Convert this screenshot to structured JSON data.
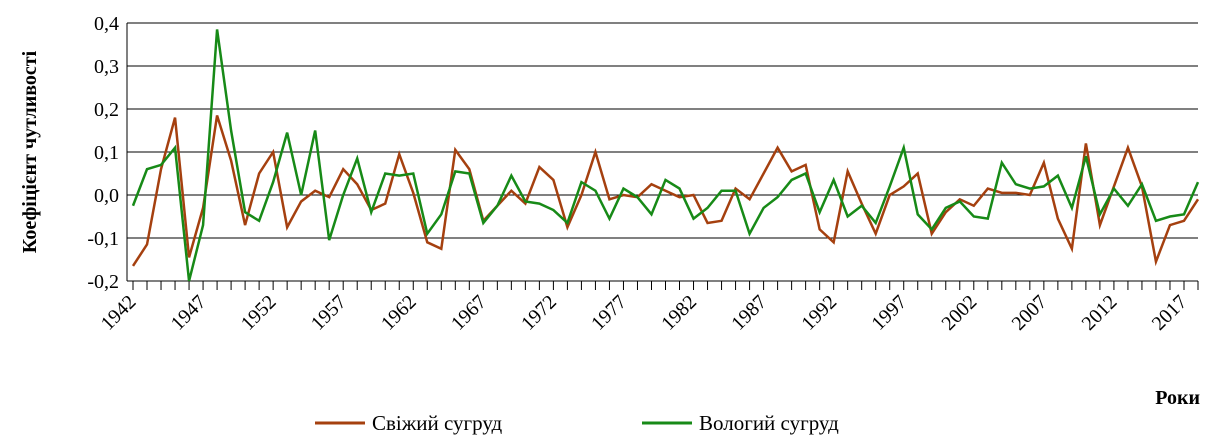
{
  "chart_data": {
    "type": "line",
    "y_label": "Коефіцієнт чутливості",
    "x_label": "Роки",
    "categories": [
      "1942",
      null,
      null,
      null,
      null,
      "1947",
      null,
      null,
      null,
      null,
      "1952",
      null,
      null,
      null,
      null,
      "1957",
      null,
      null,
      null,
      null,
      "1962",
      null,
      null,
      null,
      null,
      "1967",
      null,
      null,
      null,
      null,
      "1972",
      null,
      null,
      null,
      null,
      "1977",
      null,
      null,
      null,
      null,
      "1982",
      null,
      null,
      null,
      null,
      "1987",
      null,
      null,
      null,
      null,
      "1992",
      null,
      null,
      null,
      null,
      "1997",
      null,
      null,
      null,
      null,
      "2002",
      null,
      null,
      null,
      null,
      "2007",
      null,
      null,
      null,
      null,
      "2012",
      null,
      null,
      null,
      null,
      "2017",
      null
    ],
    "series": [
      {
        "name": "Свіжий сугруд",
        "color": "#a5400f",
        "values": [
          -0.165,
          -0.115,
          0.06,
          0.18,
          -0.145,
          -0.03,
          0.185,
          0.08,
          -0.07,
          0.05,
          0.1,
          -0.075,
          -0.015,
          0.01,
          -0.005,
          0.06,
          0.025,
          -0.035,
          -0.02,
          0.095,
          0.005,
          -0.11,
          -0.125,
          0.105,
          0.06,
          -0.06,
          -0.025,
          0.01,
          -0.02,
          0.065,
          0.035,
          -0.075,
          0.0,
          0.1,
          -0.01,
          0.0,
          -0.005,
          0.025,
          0.01,
          -0.005,
          0.0,
          -0.065,
          -0.06,
          0.015,
          -0.01,
          0.05,
          0.11,
          0.055,
          0.07,
          -0.08,
          -0.11,
          0.055,
          -0.02,
          -0.09,
          0.0,
          0.02,
          0.05,
          -0.09,
          -0.04,
          -0.01,
          -0.025,
          0.015,
          0.005,
          0.005,
          0.0,
          0.075,
          -0.055,
          -0.125,
          0.12,
          -0.07,
          0.02,
          0.11,
          0.02,
          -0.155,
          -0.07,
          -0.06,
          -0.01
        ]
      },
      {
        "name": "Вологий сугруд",
        "color": "#178a17",
        "values": [
          -0.025,
          0.06,
          0.07,
          0.11,
          -0.2,
          -0.07,
          0.385,
          0.15,
          -0.04,
          -0.06,
          0.03,
          0.145,
          0.0,
          0.15,
          -0.105,
          0.0,
          0.085,
          -0.04,
          0.05,
          0.045,
          0.05,
          -0.09,
          -0.045,
          0.055,
          0.05,
          -0.065,
          -0.025,
          0.045,
          -0.015,
          -0.02,
          -0.035,
          -0.065,
          0.03,
          0.01,
          -0.055,
          0.015,
          -0.005,
          -0.045,
          0.035,
          0.015,
          -0.055,
          -0.03,
          0.01,
          0.01,
          -0.09,
          -0.03,
          -0.005,
          0.035,
          0.05,
          -0.04,
          0.035,
          -0.05,
          -0.025,
          -0.065,
          0.02,
          0.11,
          -0.045,
          -0.08,
          -0.03,
          -0.015,
          -0.05,
          -0.055,
          0.075,
          0.025,
          0.015,
          0.02,
          0.045,
          -0.03,
          0.09,
          -0.045,
          0.015,
          -0.025,
          0.025,
          -0.06,
          -0.05,
          -0.045,
          0.03
        ]
      }
    ],
    "ylim": [
      -0.2,
      0.4
    ],
    "yticks": [
      {
        "value": -0.2,
        "label": "-0,2"
      },
      {
        "value": -0.1,
        "label": "-0,1"
      },
      {
        "value": 0,
        "label": "0,0"
      },
      {
        "value": 0.1,
        "label": "0,1"
      },
      {
        "value": 0.2,
        "label": "0,2"
      },
      {
        "value": 0.3,
        "label": "0,3"
      },
      {
        "value": 0.4,
        "label": "0,4"
      }
    ],
    "grid": true
  }
}
